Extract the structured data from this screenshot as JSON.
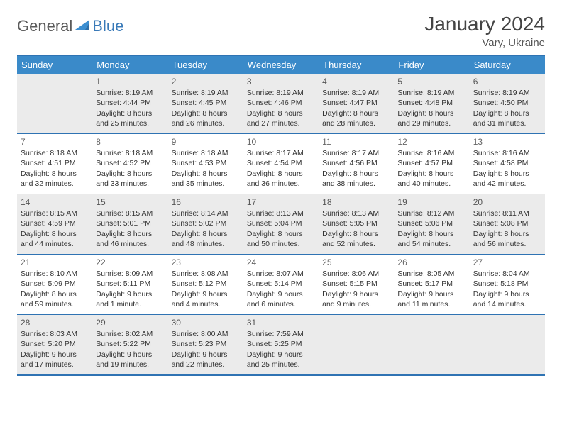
{
  "brand": {
    "part1": "General",
    "part2": "Blue"
  },
  "title": "January 2024",
  "location": "Vary, Ukraine",
  "colors": {
    "header_bg": "#3a8ac9",
    "border": "#2f73b3",
    "shade": "#ebebeb",
    "text": "#333333"
  },
  "day_headers": [
    "Sunday",
    "Monday",
    "Tuesday",
    "Wednesday",
    "Thursday",
    "Friday",
    "Saturday"
  ],
  "weeks": [
    [
      null,
      {
        "n": "1",
        "sr": "8:19 AM",
        "ss": "4:44 PM",
        "dl": "8 hours and 25 minutes."
      },
      {
        "n": "2",
        "sr": "8:19 AM",
        "ss": "4:45 PM",
        "dl": "8 hours and 26 minutes."
      },
      {
        "n": "3",
        "sr": "8:19 AM",
        "ss": "4:46 PM",
        "dl": "8 hours and 27 minutes."
      },
      {
        "n": "4",
        "sr": "8:19 AM",
        "ss": "4:47 PM",
        "dl": "8 hours and 28 minutes."
      },
      {
        "n": "5",
        "sr": "8:19 AM",
        "ss": "4:48 PM",
        "dl": "8 hours and 29 minutes."
      },
      {
        "n": "6",
        "sr": "8:19 AM",
        "ss": "4:50 PM",
        "dl": "8 hours and 31 minutes."
      }
    ],
    [
      {
        "n": "7",
        "sr": "8:18 AM",
        "ss": "4:51 PM",
        "dl": "8 hours and 32 minutes."
      },
      {
        "n": "8",
        "sr": "8:18 AM",
        "ss": "4:52 PM",
        "dl": "8 hours and 33 minutes."
      },
      {
        "n": "9",
        "sr": "8:18 AM",
        "ss": "4:53 PM",
        "dl": "8 hours and 35 minutes."
      },
      {
        "n": "10",
        "sr": "8:17 AM",
        "ss": "4:54 PM",
        "dl": "8 hours and 36 minutes."
      },
      {
        "n": "11",
        "sr": "8:17 AM",
        "ss": "4:56 PM",
        "dl": "8 hours and 38 minutes."
      },
      {
        "n": "12",
        "sr": "8:16 AM",
        "ss": "4:57 PM",
        "dl": "8 hours and 40 minutes."
      },
      {
        "n": "13",
        "sr": "8:16 AM",
        "ss": "4:58 PM",
        "dl": "8 hours and 42 minutes."
      }
    ],
    [
      {
        "n": "14",
        "sr": "8:15 AM",
        "ss": "4:59 PM",
        "dl": "8 hours and 44 minutes."
      },
      {
        "n": "15",
        "sr": "8:15 AM",
        "ss": "5:01 PM",
        "dl": "8 hours and 46 minutes."
      },
      {
        "n": "16",
        "sr": "8:14 AM",
        "ss": "5:02 PM",
        "dl": "8 hours and 48 minutes."
      },
      {
        "n": "17",
        "sr": "8:13 AM",
        "ss": "5:04 PM",
        "dl": "8 hours and 50 minutes."
      },
      {
        "n": "18",
        "sr": "8:13 AM",
        "ss": "5:05 PM",
        "dl": "8 hours and 52 minutes."
      },
      {
        "n": "19",
        "sr": "8:12 AM",
        "ss": "5:06 PM",
        "dl": "8 hours and 54 minutes."
      },
      {
        "n": "20",
        "sr": "8:11 AM",
        "ss": "5:08 PM",
        "dl": "8 hours and 56 minutes."
      }
    ],
    [
      {
        "n": "21",
        "sr": "8:10 AM",
        "ss": "5:09 PM",
        "dl": "8 hours and 59 minutes."
      },
      {
        "n": "22",
        "sr": "8:09 AM",
        "ss": "5:11 PM",
        "dl": "9 hours and 1 minute."
      },
      {
        "n": "23",
        "sr": "8:08 AM",
        "ss": "5:12 PM",
        "dl": "9 hours and 4 minutes."
      },
      {
        "n": "24",
        "sr": "8:07 AM",
        "ss": "5:14 PM",
        "dl": "9 hours and 6 minutes."
      },
      {
        "n": "25",
        "sr": "8:06 AM",
        "ss": "5:15 PM",
        "dl": "9 hours and 9 minutes."
      },
      {
        "n": "26",
        "sr": "8:05 AM",
        "ss": "5:17 PM",
        "dl": "9 hours and 11 minutes."
      },
      {
        "n": "27",
        "sr": "8:04 AM",
        "ss": "5:18 PM",
        "dl": "9 hours and 14 minutes."
      }
    ],
    [
      {
        "n": "28",
        "sr": "8:03 AM",
        "ss": "5:20 PM",
        "dl": "9 hours and 17 minutes."
      },
      {
        "n": "29",
        "sr": "8:02 AM",
        "ss": "5:22 PM",
        "dl": "9 hours and 19 minutes."
      },
      {
        "n": "30",
        "sr": "8:00 AM",
        "ss": "5:23 PM",
        "dl": "9 hours and 22 minutes."
      },
      {
        "n": "31",
        "sr": "7:59 AM",
        "ss": "5:25 PM",
        "dl": "9 hours and 25 minutes."
      },
      null,
      null,
      null
    ]
  ],
  "labels": {
    "sunrise": "Sunrise:",
    "sunset": "Sunset:",
    "daylight": "Daylight:"
  }
}
